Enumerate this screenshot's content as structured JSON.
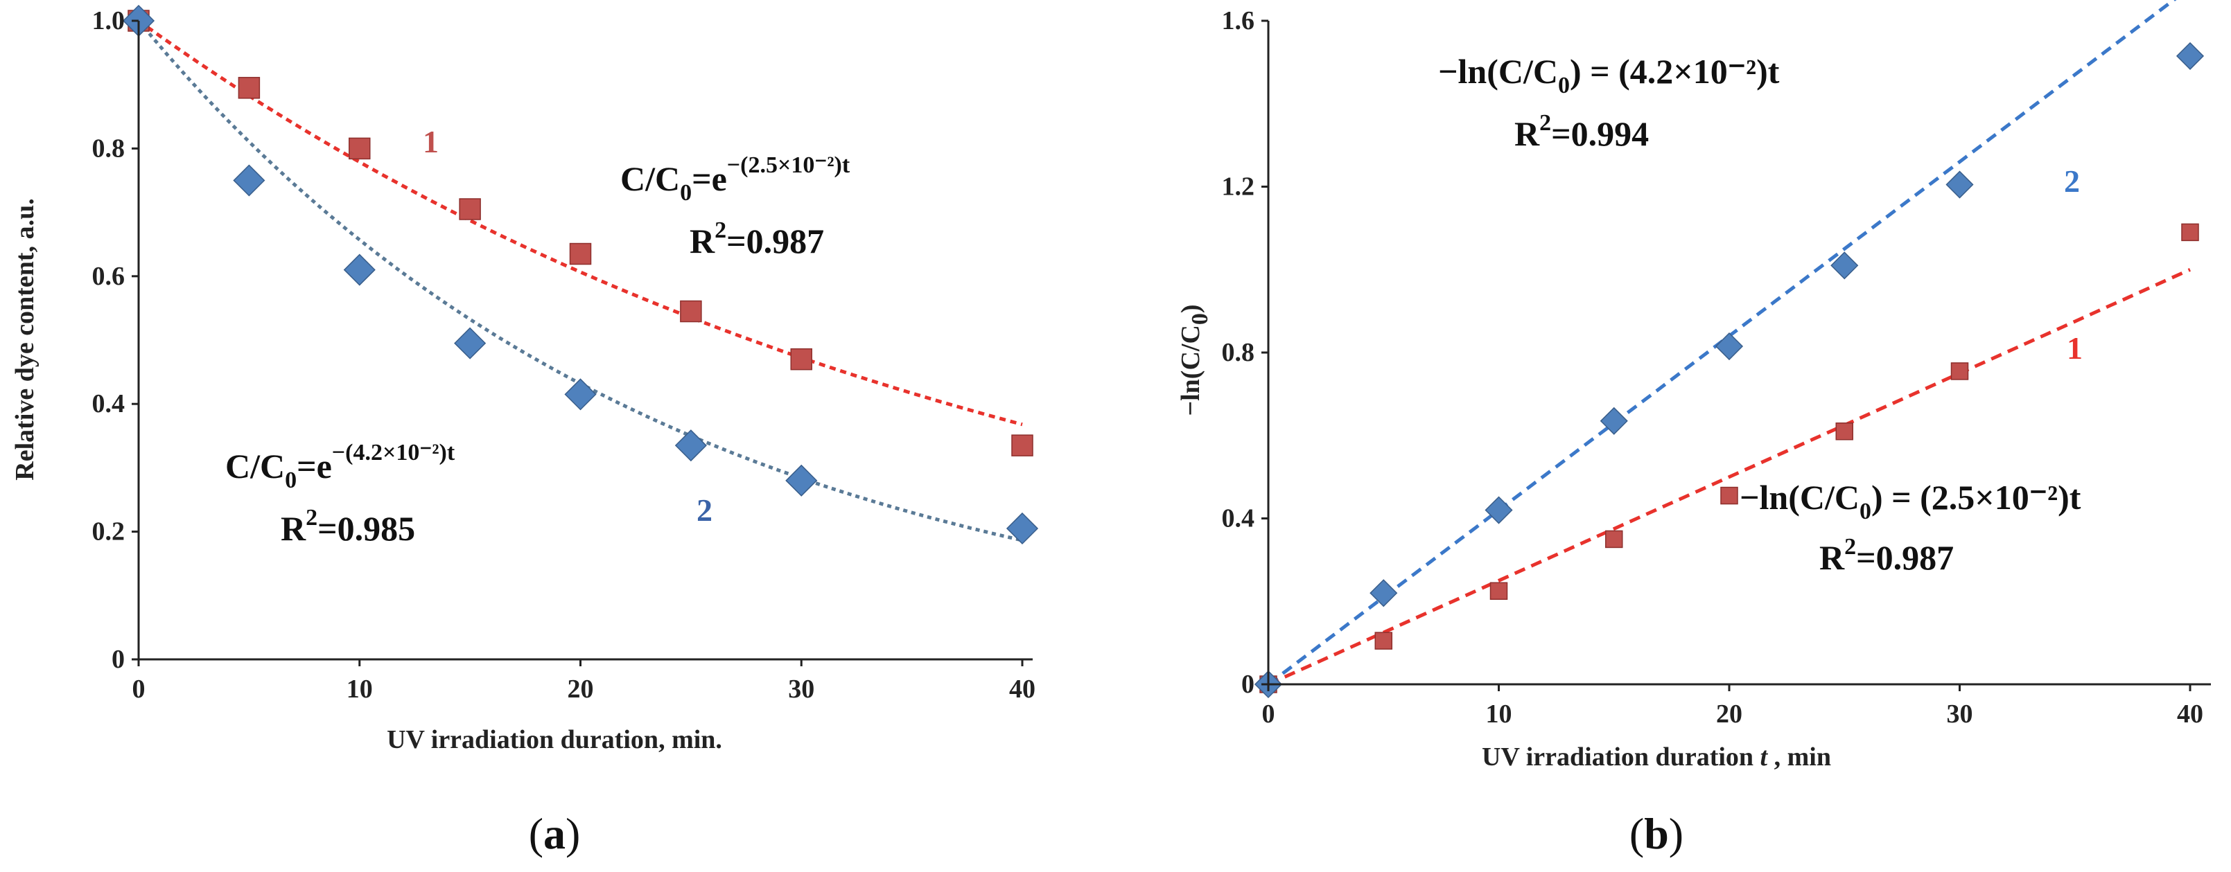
{
  "colors": {
    "series1_marker": "#c0504d",
    "series1_line": "#e8322c",
    "series2_marker": "#4f81bd",
    "series2_line_a": "#5a7a96",
    "series2_line_b": "#3b78c9"
  },
  "chart_data": [
    {
      "id": "a",
      "type": "scatter",
      "panel_label": "(a)",
      "panel_letter": "a",
      "xlabel": "UV irradiation duration, min.",
      "ylabel": "Relative dye content, a.u.",
      "xlim": [
        0,
        40
      ],
      "ylim": [
        0,
        1.0
      ],
      "x_ticks": [
        0,
        10,
        20,
        30,
        40
      ],
      "x_tick_labels": [
        "0",
        "10",
        "20",
        "30",
        "40"
      ],
      "y_ticks": [
        0,
        0.2,
        0.4,
        0.6,
        0.8,
        1.0
      ],
      "y_tick_labels": [
        "0",
        "0.2",
        "0.4",
        "0.6",
        "0.8",
        "1.0"
      ],
      "series": [
        {
          "name": "1",
          "marker": "square",
          "x": [
            0,
            5,
            10,
            15,
            20,
            25,
            30,
            40
          ],
          "y": [
            1.0,
            0.895,
            0.8,
            0.705,
            0.635,
            0.545,
            0.47,
            0.335
          ],
          "fit": {
            "model": "exp",
            "k": 0.025
          },
          "equation": {
            "lhs": "C/C",
            "sub": "0",
            "base": "=e",
            "exp": "−(2.5×10⁻²)t"
          },
          "r2_text": "=0.987",
          "label": "1"
        },
        {
          "name": "2",
          "marker": "diamond",
          "x": [
            0,
            5,
            10,
            15,
            20,
            25,
            30,
            40
          ],
          "y": [
            1.0,
            0.75,
            0.61,
            0.495,
            0.415,
            0.335,
            0.28,
            0.205
          ],
          "fit": {
            "model": "exp",
            "k": 0.042
          },
          "equation": {
            "lhs": "C/C",
            "sub": "0",
            "base": "=e",
            "exp": "−(4.2×10⁻²)t"
          },
          "r2_text": "=0.985",
          "label": "2"
        }
      ]
    },
    {
      "id": "b",
      "type": "scatter",
      "panel_label": "(b)",
      "panel_letter": "b",
      "xlabel": "UV irradiation duration t , min",
      "xlabel_main": "UV irradiation duration ",
      "xlabel_var": "t",
      "xlabel_unit": " , min",
      "ylabel": "−ln(C/C₀)",
      "ylabel_main": "−ln(C/C",
      "ylabel_sub": "0",
      "ylabel_close": ")",
      "xlim": [
        0,
        40
      ],
      "ylim": [
        0,
        1.6
      ],
      "x_ticks": [
        0,
        10,
        20,
        30,
        40
      ],
      "x_tick_labels": [
        "0",
        "10",
        "20",
        "30",
        "40"
      ],
      "y_ticks": [
        0,
        0.4,
        0.8,
        1.2,
        1.6
      ],
      "y_tick_labels": [
        "0",
        "0.4",
        "0.8",
        "1.2",
        "1.6"
      ],
      "series": [
        {
          "name": "1",
          "marker": "square",
          "x": [
            0,
            5,
            10,
            15,
            20,
            25,
            30,
            40
          ],
          "y": [
            0,
            0.105,
            0.225,
            0.35,
            0.455,
            0.61,
            0.755,
            1.09
          ],
          "fit": {
            "model": "linear",
            "k": 0.025
          },
          "equation": {
            "lhs": "−ln(C/C",
            "sub": "0",
            "rhs": ") = (2.5×10⁻²)t"
          },
          "r2_text": "=0.987",
          "label": "1"
        },
        {
          "name": "2",
          "marker": "diamond",
          "x": [
            0,
            5,
            10,
            15,
            20,
            25,
            30,
            40
          ],
          "y": [
            0,
            0.22,
            0.42,
            0.635,
            0.815,
            1.01,
            1.205,
            1.515
          ],
          "fit": {
            "model": "linear",
            "k": 0.042
          },
          "equation": {
            "lhs": "−ln(C/C",
            "sub": "0",
            "rhs": ") = (4.2×10⁻²)t"
          },
          "r2_text": "=0.994",
          "label": "2"
        }
      ]
    }
  ],
  "equation_parts": {
    "r_symbol": "R",
    "r_power": "2"
  }
}
